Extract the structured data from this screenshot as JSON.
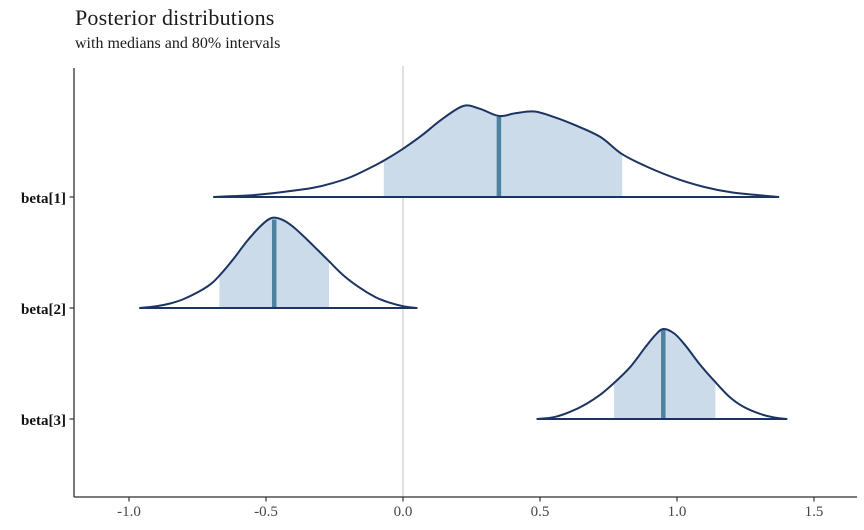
{
  "chart_data": {
    "type": "area",
    "title": "Posterior distributions",
    "subtitle": "with medians and 80% intervals",
    "interval_probability": "80%",
    "reference_line_x": 0.0,
    "x_axis": {
      "ticks": [
        -1.0,
        -0.5,
        0.0,
        0.5,
        1.0,
        1.5
      ],
      "tick_labels": [
        "-1.0",
        "-0.5",
        "0.0",
        "0.5",
        "1.0",
        "1.5"
      ],
      "range": [
        -1.2,
        1.65
      ]
    },
    "parameters": [
      {
        "name": "beta[1]",
        "median": 0.35,
        "interval_80": [
          -0.07,
          0.8
        ],
        "density_range": [
          -0.69,
          1.37
        ],
        "density": [
          [
            -0.69,
            0.0
          ],
          [
            -0.62,
            0.01
          ],
          [
            -0.55,
            0.02
          ],
          [
            -0.48,
            0.04
          ],
          [
            -0.4,
            0.07
          ],
          [
            -0.33,
            0.1
          ],
          [
            -0.26,
            0.15
          ],
          [
            -0.19,
            0.22
          ],
          [
            -0.12,
            0.32
          ],
          [
            -0.07,
            0.4
          ],
          [
            0.0,
            0.53
          ],
          [
            0.07,
            0.68
          ],
          [
            0.14,
            0.85
          ],
          [
            0.22,
            1.0
          ],
          [
            0.28,
            0.97
          ],
          [
            0.35,
            0.89
          ],
          [
            0.41,
            0.92
          ],
          [
            0.48,
            0.94
          ],
          [
            0.55,
            0.88
          ],
          [
            0.62,
            0.8
          ],
          [
            0.72,
            0.66
          ],
          [
            0.8,
            0.47
          ],
          [
            0.9,
            0.32
          ],
          [
            1.0,
            0.2
          ],
          [
            1.1,
            0.11
          ],
          [
            1.2,
            0.05
          ],
          [
            1.3,
            0.02
          ],
          [
            1.37,
            0.0
          ]
        ]
      },
      {
        "name": "beta[2]",
        "median": -0.47,
        "interval_80": [
          -0.67,
          -0.27
        ],
        "density_range": [
          -0.96,
          0.05
        ],
        "density": [
          [
            -0.96,
            0.0
          ],
          [
            -0.9,
            0.02
          ],
          [
            -0.85,
            0.05
          ],
          [
            -0.8,
            0.1
          ],
          [
            -0.74,
            0.19
          ],
          [
            -0.7,
            0.27
          ],
          [
            -0.67,
            0.36
          ],
          [
            -0.62,
            0.54
          ],
          [
            -0.57,
            0.74
          ],
          [
            -0.52,
            0.91
          ],
          [
            -0.48,
            1.0
          ],
          [
            -0.44,
            0.98
          ],
          [
            -0.4,
            0.9
          ],
          [
            -0.35,
            0.76
          ],
          [
            -0.31,
            0.64
          ],
          [
            -0.27,
            0.52
          ],
          [
            -0.22,
            0.37
          ],
          [
            -0.16,
            0.23
          ],
          [
            -0.1,
            0.12
          ],
          [
            -0.05,
            0.06
          ],
          [
            0.0,
            0.02
          ],
          [
            0.05,
            0.0
          ]
        ]
      },
      {
        "name": "beta[3]",
        "median": 0.95,
        "interval_80": [
          0.77,
          1.14
        ],
        "density_range": [
          0.49,
          1.4
        ],
        "density": [
          [
            0.49,
            0.0
          ],
          [
            0.55,
            0.02
          ],
          [
            0.61,
            0.08
          ],
          [
            0.67,
            0.17
          ],
          [
            0.72,
            0.27
          ],
          [
            0.77,
            0.4
          ],
          [
            0.83,
            0.58
          ],
          [
            0.88,
            0.78
          ],
          [
            0.92,
            0.93
          ],
          [
            0.95,
            1.0
          ],
          [
            0.99,
            0.95
          ],
          [
            1.03,
            0.82
          ],
          [
            1.08,
            0.62
          ],
          [
            1.14,
            0.41
          ],
          [
            1.19,
            0.25
          ],
          [
            1.24,
            0.14
          ],
          [
            1.3,
            0.06
          ],
          [
            1.35,
            0.02
          ],
          [
            1.4,
            0.0
          ]
        ]
      }
    ],
    "colors": {
      "outline": "#1c3462",
      "interval_fill": "#ccdbe9",
      "median_line": "#4f81a0",
      "reference_line": "#d9d9d9",
      "axis": "#2f2f2f",
      "tick": "#333333"
    },
    "legend": {
      "shown": false
    }
  }
}
